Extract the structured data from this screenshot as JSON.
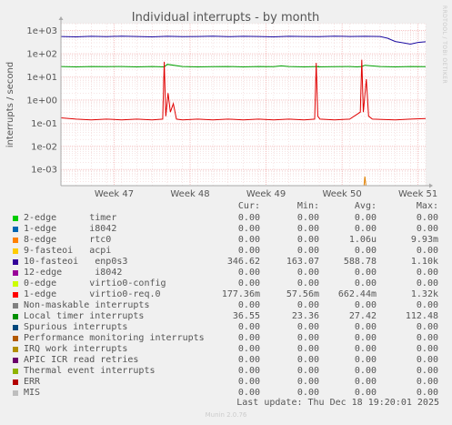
{
  "chart_data": {
    "type": "line",
    "title": "Individual interrupts - by month",
    "ylabel": "interrupts / second",
    "y_scale": "log",
    "ylim": [
      0.0002,
      2000
    ],
    "y_ticks": [
      {
        "value": 1000,
        "label": "1e+03"
      },
      {
        "value": 100,
        "label": "1e+02"
      },
      {
        "value": 10,
        "label": "1e+01"
      },
      {
        "value": 1,
        "label": "1e+00"
      },
      {
        "value": 0.1,
        "label": "1e-01"
      },
      {
        "value": 0.01,
        "label": "1e-02"
      },
      {
        "value": 0.001,
        "label": "1e-03"
      }
    ],
    "xlim": [
      0,
      48
    ],
    "x_ticks": [
      {
        "value": 7,
        "label": "Week 47"
      },
      {
        "value": 17,
        "label": "Week 48"
      },
      {
        "value": 27,
        "label": "Week 49"
      },
      {
        "value": 37,
        "label": "Week 50"
      },
      {
        "value": 47,
        "label": "Week 51"
      }
    ],
    "grid": true,
    "series": [
      {
        "name": "10-fasteoi   enp0s3",
        "color": "#1a0aa0",
        "x": [
          0,
          2,
          4,
          6,
          8,
          10,
          12,
          14,
          16,
          18,
          20,
          22,
          24,
          26,
          28,
          30,
          32,
          34,
          36,
          38,
          40,
          42,
          43,
          44,
          45,
          46,
          47,
          48
        ],
        "y": [
          560,
          540,
          570,
          550,
          580,
          560,
          540,
          570,
          550,
          560,
          580,
          550,
          570,
          560,
          540,
          570,
          560,
          550,
          580,
          560,
          570,
          560,
          470,
          340,
          300,
          260,
          310,
          330
        ]
      },
      {
        "name": "Local timer interrupts",
        "color": "#00a000",
        "x": [
          0,
          2,
          4,
          6,
          8,
          10,
          12,
          13.6,
          14,
          16,
          18,
          20,
          22,
          24,
          26,
          28,
          29,
          30,
          32,
          34,
          33.8,
          36,
          38,
          39,
          39.6,
          40,
          42,
          44,
          46,
          48
        ],
        "y": [
          28,
          27,
          28,
          27.5,
          28,
          27,
          28,
          27,
          35,
          28,
          27,
          27.5,
          28,
          27,
          28,
          27.5,
          30,
          28,
          27,
          28,
          27,
          27.5,
          28,
          27,
          28,
          32,
          28,
          27,
          28,
          27.5
        ]
      },
      {
        "name": "1-edge    virtio0-req.0",
        "color": "#e00000",
        "x": [
          0,
          2,
          4,
          6,
          8,
          10,
          12,
          13.4,
          13.6,
          13.8,
          14.1,
          14.4,
          14.8,
          15.2,
          16,
          18,
          20,
          22,
          24,
          26,
          28,
          30,
          32,
          33.4,
          33.6,
          33.8,
          34.1,
          36,
          38,
          39.4,
          39.6,
          39.8,
          40.2,
          40.5,
          41,
          44,
          46,
          48
        ],
        "y": [
          0.17,
          0.15,
          0.14,
          0.15,
          0.14,
          0.15,
          0.14,
          0.15,
          45,
          0.2,
          2,
          0.3,
          0.7,
          0.15,
          0.14,
          0.15,
          0.14,
          0.15,
          0.14,
          0.15,
          0.14,
          0.15,
          0.14,
          0.15,
          40,
          0.2,
          0.15,
          0.14,
          0.15,
          0.3,
          55,
          0.3,
          8,
          0.2,
          0.15,
          0.14,
          0.15,
          0.16
        ]
      },
      {
        "name": "8-edge      rtc0",
        "color": "#e08000",
        "x": [
          39.9,
          40.0,
          40.15
        ],
        "y": [
          0.0002,
          0.0005,
          0.0002
        ]
      }
    ]
  },
  "vertical_label": "RRDTOOL / TOBI OETIKER",
  "legend": {
    "headers": {
      "cur": "Cur:",
      "min": "Min:",
      "avg": "Avg:",
      "max": "Max:"
    },
    "rows": [
      {
        "label": "2-edge      timer",
        "color": "#00cc00",
        "cur": "0.00",
        "min": "0.00",
        "avg": "0.00",
        "max": "0.00"
      },
      {
        "label": "1-edge      i8042",
        "color": "#0066b3",
        "cur": "0.00",
        "min": "0.00",
        "avg": "0.00",
        "max": "0.00"
      },
      {
        "label": "8-edge      rtc0",
        "color": "#ff8000",
        "cur": "0.00",
        "min": "0.00",
        "avg": "1.06u",
        "max": "9.93m"
      },
      {
        "label": "9-fasteoi   acpi",
        "color": "#ffcc00",
        "cur": "0.00",
        "min": "0.00",
        "avg": "0.00",
        "max": "0.00"
      },
      {
        "label": "10-fasteoi   enp0s3",
        "color": "#330099",
        "cur": "346.62",
        "min": "163.07",
        "avg": "588.78",
        "max": "1.10k"
      },
      {
        "label": "12-edge      i8042",
        "color": "#990099",
        "cur": "0.00",
        "min": "0.00",
        "avg": "0.00",
        "max": "0.00"
      },
      {
        "label": "0-edge      virtio0-config",
        "color": "#ccff00",
        "cur": "0.00",
        "min": "0.00",
        "avg": "0.00",
        "max": "0.00"
      },
      {
        "label": "1-edge      virtio0-req.0",
        "color": "#ff0000",
        "cur": "177.36m",
        "min": "57.56m",
        "avg": "662.44m",
        "max": "1.32k"
      },
      {
        "label": "Non-maskable interrupts",
        "color": "#808080",
        "cur": "0.00",
        "min": "0.00",
        "avg": "0.00",
        "max": "0.00"
      },
      {
        "label": "Local timer interrupts",
        "color": "#008f00",
        "cur": "36.55",
        "min": "23.36",
        "avg": "27.42",
        "max": "112.48"
      },
      {
        "label": "Spurious interrupts",
        "color": "#00487d",
        "cur": "0.00",
        "min": "0.00",
        "avg": "0.00",
        "max": "0.00"
      },
      {
        "label": "Performance monitoring interrupts",
        "color": "#b35a00",
        "cur": "0.00",
        "min": "0.00",
        "avg": "0.00",
        "max": "0.00"
      },
      {
        "label": "IRQ work interrupts",
        "color": "#b38f00",
        "cur": "0.00",
        "min": "0.00",
        "avg": "0.00",
        "max": "0.00"
      },
      {
        "label": "APIC ICR read retries",
        "color": "#6b006b",
        "cur": "0.00",
        "min": "0.00",
        "avg": "0.00",
        "max": "0.00"
      },
      {
        "label": "Thermal event interrupts",
        "color": "#8fb300",
        "cur": "0.00",
        "min": "0.00",
        "avg": "0.00",
        "max": "0.00"
      },
      {
        "label": "ERR",
        "color": "#b30000",
        "cur": "0.00",
        "min": "0.00",
        "avg": "0.00",
        "max": "0.00"
      },
      {
        "label": "MIS",
        "color": "#bebebe",
        "cur": "0.00",
        "min": "0.00",
        "avg": "0.00",
        "max": "0.00"
      }
    ]
  },
  "last_update": "Last update: Thu Dec 18 19:20:01 2025",
  "munin_version": "Munin 2.0.76"
}
